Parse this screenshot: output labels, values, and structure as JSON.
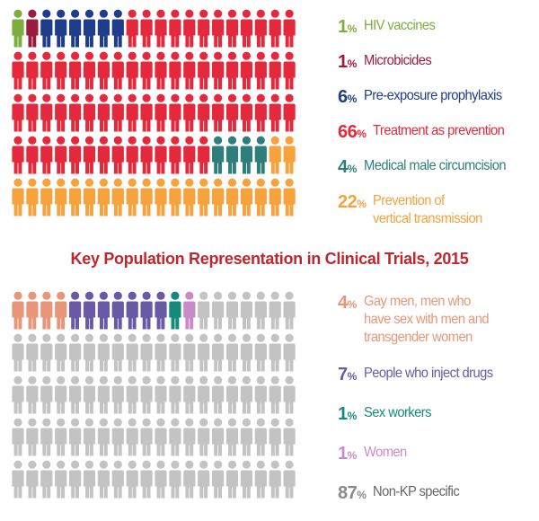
{
  "title": "Key Population Representation in Clinical Trials, 2015",
  "chart_data": [
    {
      "type": "pictogram",
      "total_icons": 100,
      "series": [
        {
          "name": "HIV vaccines",
          "value": 1,
          "color": "#7dac3f"
        },
        {
          "name": "Microbicides",
          "value": 1,
          "color": "#9b1b3e"
        },
        {
          "name": "Pre-exposure prophylaxis",
          "value": 6,
          "color": "#1f3d8a"
        },
        {
          "name": "Treatment as prevention",
          "value": 66,
          "color": "#e5293c"
        },
        {
          "name": "Medical male circumcision",
          "value": 4,
          "color": "#2e7f7a"
        },
        {
          "name": "Prevention of vertical transmission",
          "value": 22,
          "color": "#f6a23d"
        }
      ]
    },
    {
      "type": "pictogram",
      "title": "Key Population Representation in Clinical Trials, 2015",
      "total_icons": 100,
      "series": [
        {
          "name": "Gay men, men who have sex with men and transgender women",
          "value": 4,
          "color": "#e8967a"
        },
        {
          "name": "People who inject drugs",
          "value": 7,
          "color": "#6a5aa6"
        },
        {
          "name": "Sex workers",
          "value": 1,
          "color": "#148a7d"
        },
        {
          "name": "Women",
          "value": 1,
          "color": "#c88bc8"
        },
        {
          "name": "Non-KP specific",
          "value": 87,
          "color": "#c3c3c3"
        }
      ]
    }
  ],
  "legend_top": [
    {
      "pct": "1",
      "sym": "%",
      "lines": [
        "HIV vaccines"
      ],
      "color": "#7dac3f"
    },
    {
      "pct": "1",
      "sym": "%",
      "lines": [
        "Microbicides"
      ],
      "color": "#9b1b3e"
    },
    {
      "pct": "6",
      "sym": "%",
      "lines": [
        "Pre-exposure prophylaxis"
      ],
      "color": "#1f3d8a"
    },
    {
      "pct": "66",
      "sym": "%",
      "lines": [
        "Treatment as prevention"
      ],
      "color": "#e5293c"
    },
    {
      "pct": "4",
      "sym": "%",
      "lines": [
        "Medical male circumcision"
      ],
      "color": "#2e7f7a"
    },
    {
      "pct": "22",
      "sym": "%",
      "lines": [
        "Prevention of",
        "vertical transmission"
      ],
      "color": "#f6a23d"
    }
  ],
  "legend_bottom": [
    {
      "pct": "4",
      "sym": "%",
      "lines": [
        "Gay men, men who",
        "have sex with men and",
        "transgender women"
      ],
      "color": "#e8967a",
      "label_color": "#e8967a"
    },
    {
      "pct": "7",
      "sym": "%",
      "lines": [
        "People who inject drugs"
      ],
      "color": "#6a5aa6",
      "label_color": "#6a5aa6"
    },
    {
      "pct": "1",
      "sym": "%",
      "lines": [
        "Sex workers"
      ],
      "color": "#148a7d",
      "label_color": "#148a7d"
    },
    {
      "pct": "1",
      "sym": "%",
      "lines": [
        "Women"
      ],
      "color": "#c88bc8",
      "label_color": "#c88bc8"
    },
    {
      "pct": "87",
      "sym": "%",
      "lines": [
        "Non-KP specific"
      ],
      "color": "#8a8a8a",
      "label_color": "#666666"
    }
  ]
}
